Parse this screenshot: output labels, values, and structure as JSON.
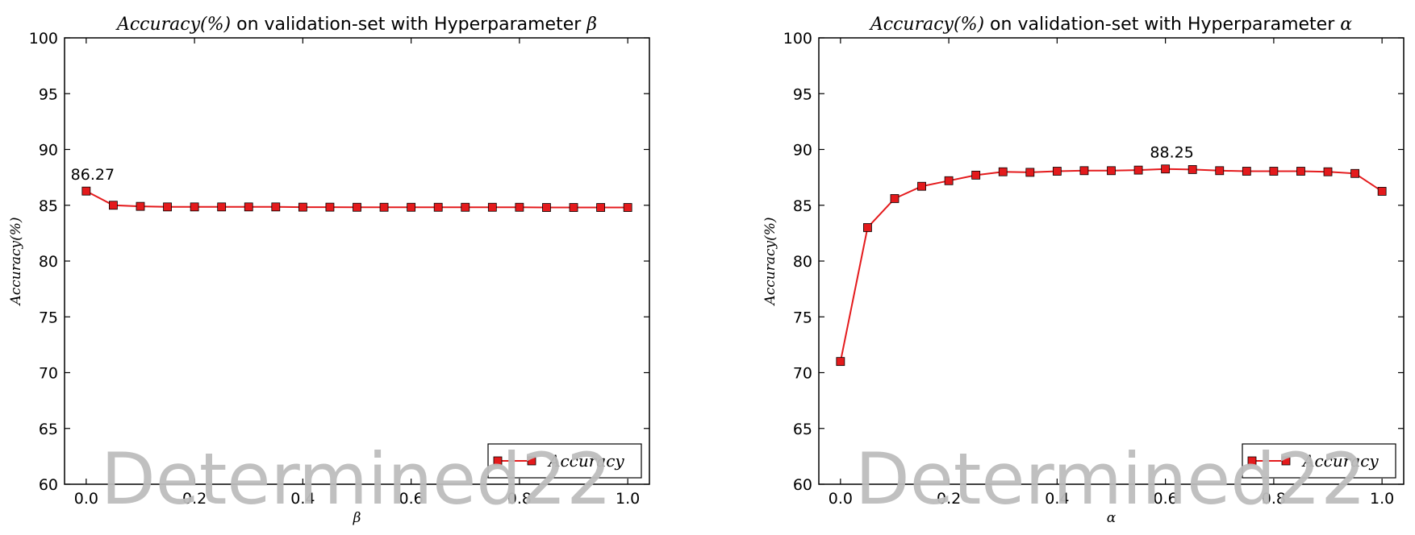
{
  "watermark": "Determined22",
  "chart_data": [
    {
      "type": "line",
      "title_math": "Accuracy(%)",
      "title_text": " on validation-set with Hyperparameter ",
      "title_symbol": "β",
      "xlabel": "β",
      "ylabel": "Accuracy(%)",
      "xlim": [
        -0.04,
        1.04
      ],
      "ylim": [
        60,
        100
      ],
      "xticks": [
        "0.0",
        "0.2",
        "0.4",
        "0.6",
        "0.8",
        "1.0"
      ],
      "yticks": [
        "60",
        "65",
        "70",
        "75",
        "80",
        "85",
        "90",
        "95",
        "100"
      ],
      "grid": false,
      "legend_position": "lower right",
      "series": [
        {
          "name": "Accuracy",
          "color": "#e41a1c",
          "marker": "square",
          "x": [
            0.0,
            0.05,
            0.1,
            0.15,
            0.2,
            0.25,
            0.3,
            0.35,
            0.4,
            0.45,
            0.5,
            0.55,
            0.6,
            0.65,
            0.7,
            0.75,
            0.8,
            0.85,
            0.9,
            0.95,
            1.0
          ],
          "y": [
            86.27,
            85.0,
            84.9,
            84.85,
            84.85,
            84.85,
            84.85,
            84.85,
            84.83,
            84.83,
            84.82,
            84.82,
            84.82,
            84.82,
            84.82,
            84.82,
            84.82,
            84.8,
            84.8,
            84.8,
            84.8
          ]
        }
      ],
      "annotation": {
        "text": "86.27",
        "x": 0.0,
        "y": 86.27
      }
    },
    {
      "type": "line",
      "title_math": "Accuracy(%)",
      "title_text": " on validation-set with Hyperparameter ",
      "title_symbol": "α",
      "xlabel": "α",
      "ylabel": "Accuracy(%)",
      "xlim": [
        -0.04,
        1.04
      ],
      "ylim": [
        60,
        100
      ],
      "xticks": [
        "0.0",
        "0.2",
        "0.4",
        "0.6",
        "0.8",
        "1.0"
      ],
      "yticks": [
        "60",
        "65",
        "70",
        "75",
        "80",
        "85",
        "90",
        "95",
        "100"
      ],
      "grid": false,
      "legend_position": "lower right",
      "series": [
        {
          "name": "Accuracy",
          "color": "#e41a1c",
          "marker": "square",
          "x": [
            0.0,
            0.05,
            0.1,
            0.15,
            0.2,
            0.25,
            0.3,
            0.35,
            0.4,
            0.45,
            0.5,
            0.55,
            0.6,
            0.65,
            0.7,
            0.75,
            0.8,
            0.85,
            0.9,
            0.95,
            1.0
          ],
          "y": [
            71.0,
            83.0,
            85.6,
            86.7,
            87.2,
            87.7,
            88.0,
            87.95,
            88.05,
            88.1,
            88.1,
            88.15,
            88.25,
            88.2,
            88.1,
            88.05,
            88.05,
            88.05,
            88.0,
            87.85,
            86.25
          ]
        }
      ],
      "annotation": {
        "text": "88.25",
        "x": 0.6,
        "y": 88.25
      }
    }
  ]
}
